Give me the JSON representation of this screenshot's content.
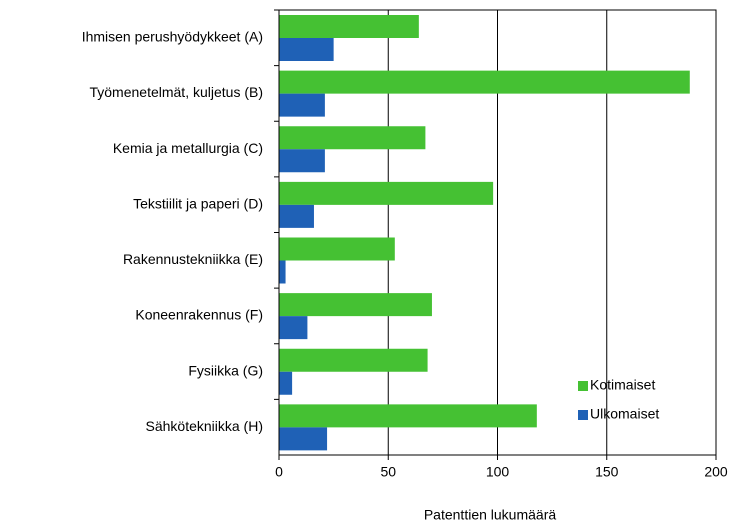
{
  "chart_data": {
    "type": "bar",
    "orientation": "horizontal",
    "x_label": "Patenttien lukumäärä",
    "categories": [
      "Ihmisen perushyödykkeet (A)",
      "Työmenetelmät, kuljetus (B)",
      "Kemia ja metallurgia (C)",
      "Tekstiilit ja paperi (D)",
      "Rakennustekniikka (E)",
      "Koneenrakennus (F)",
      "Fysiikka (G)",
      "Sähkötekniikka (H)"
    ],
    "series": [
      {
        "name": "Kotimaiset",
        "color": "#45c133",
        "values": [
          64,
          188,
          67,
          98,
          53,
          70,
          68,
          118
        ]
      },
      {
        "name": "Ulkomaiset",
        "color": "#1f61b6",
        "values": [
          25,
          21,
          21,
          16,
          3,
          13,
          6,
          22
        ]
      }
    ],
    "xlim": [
      0,
      200
    ],
    "xticks": [
      0,
      50,
      100,
      150,
      200
    ],
    "grid": true,
    "legend": "lower right"
  }
}
